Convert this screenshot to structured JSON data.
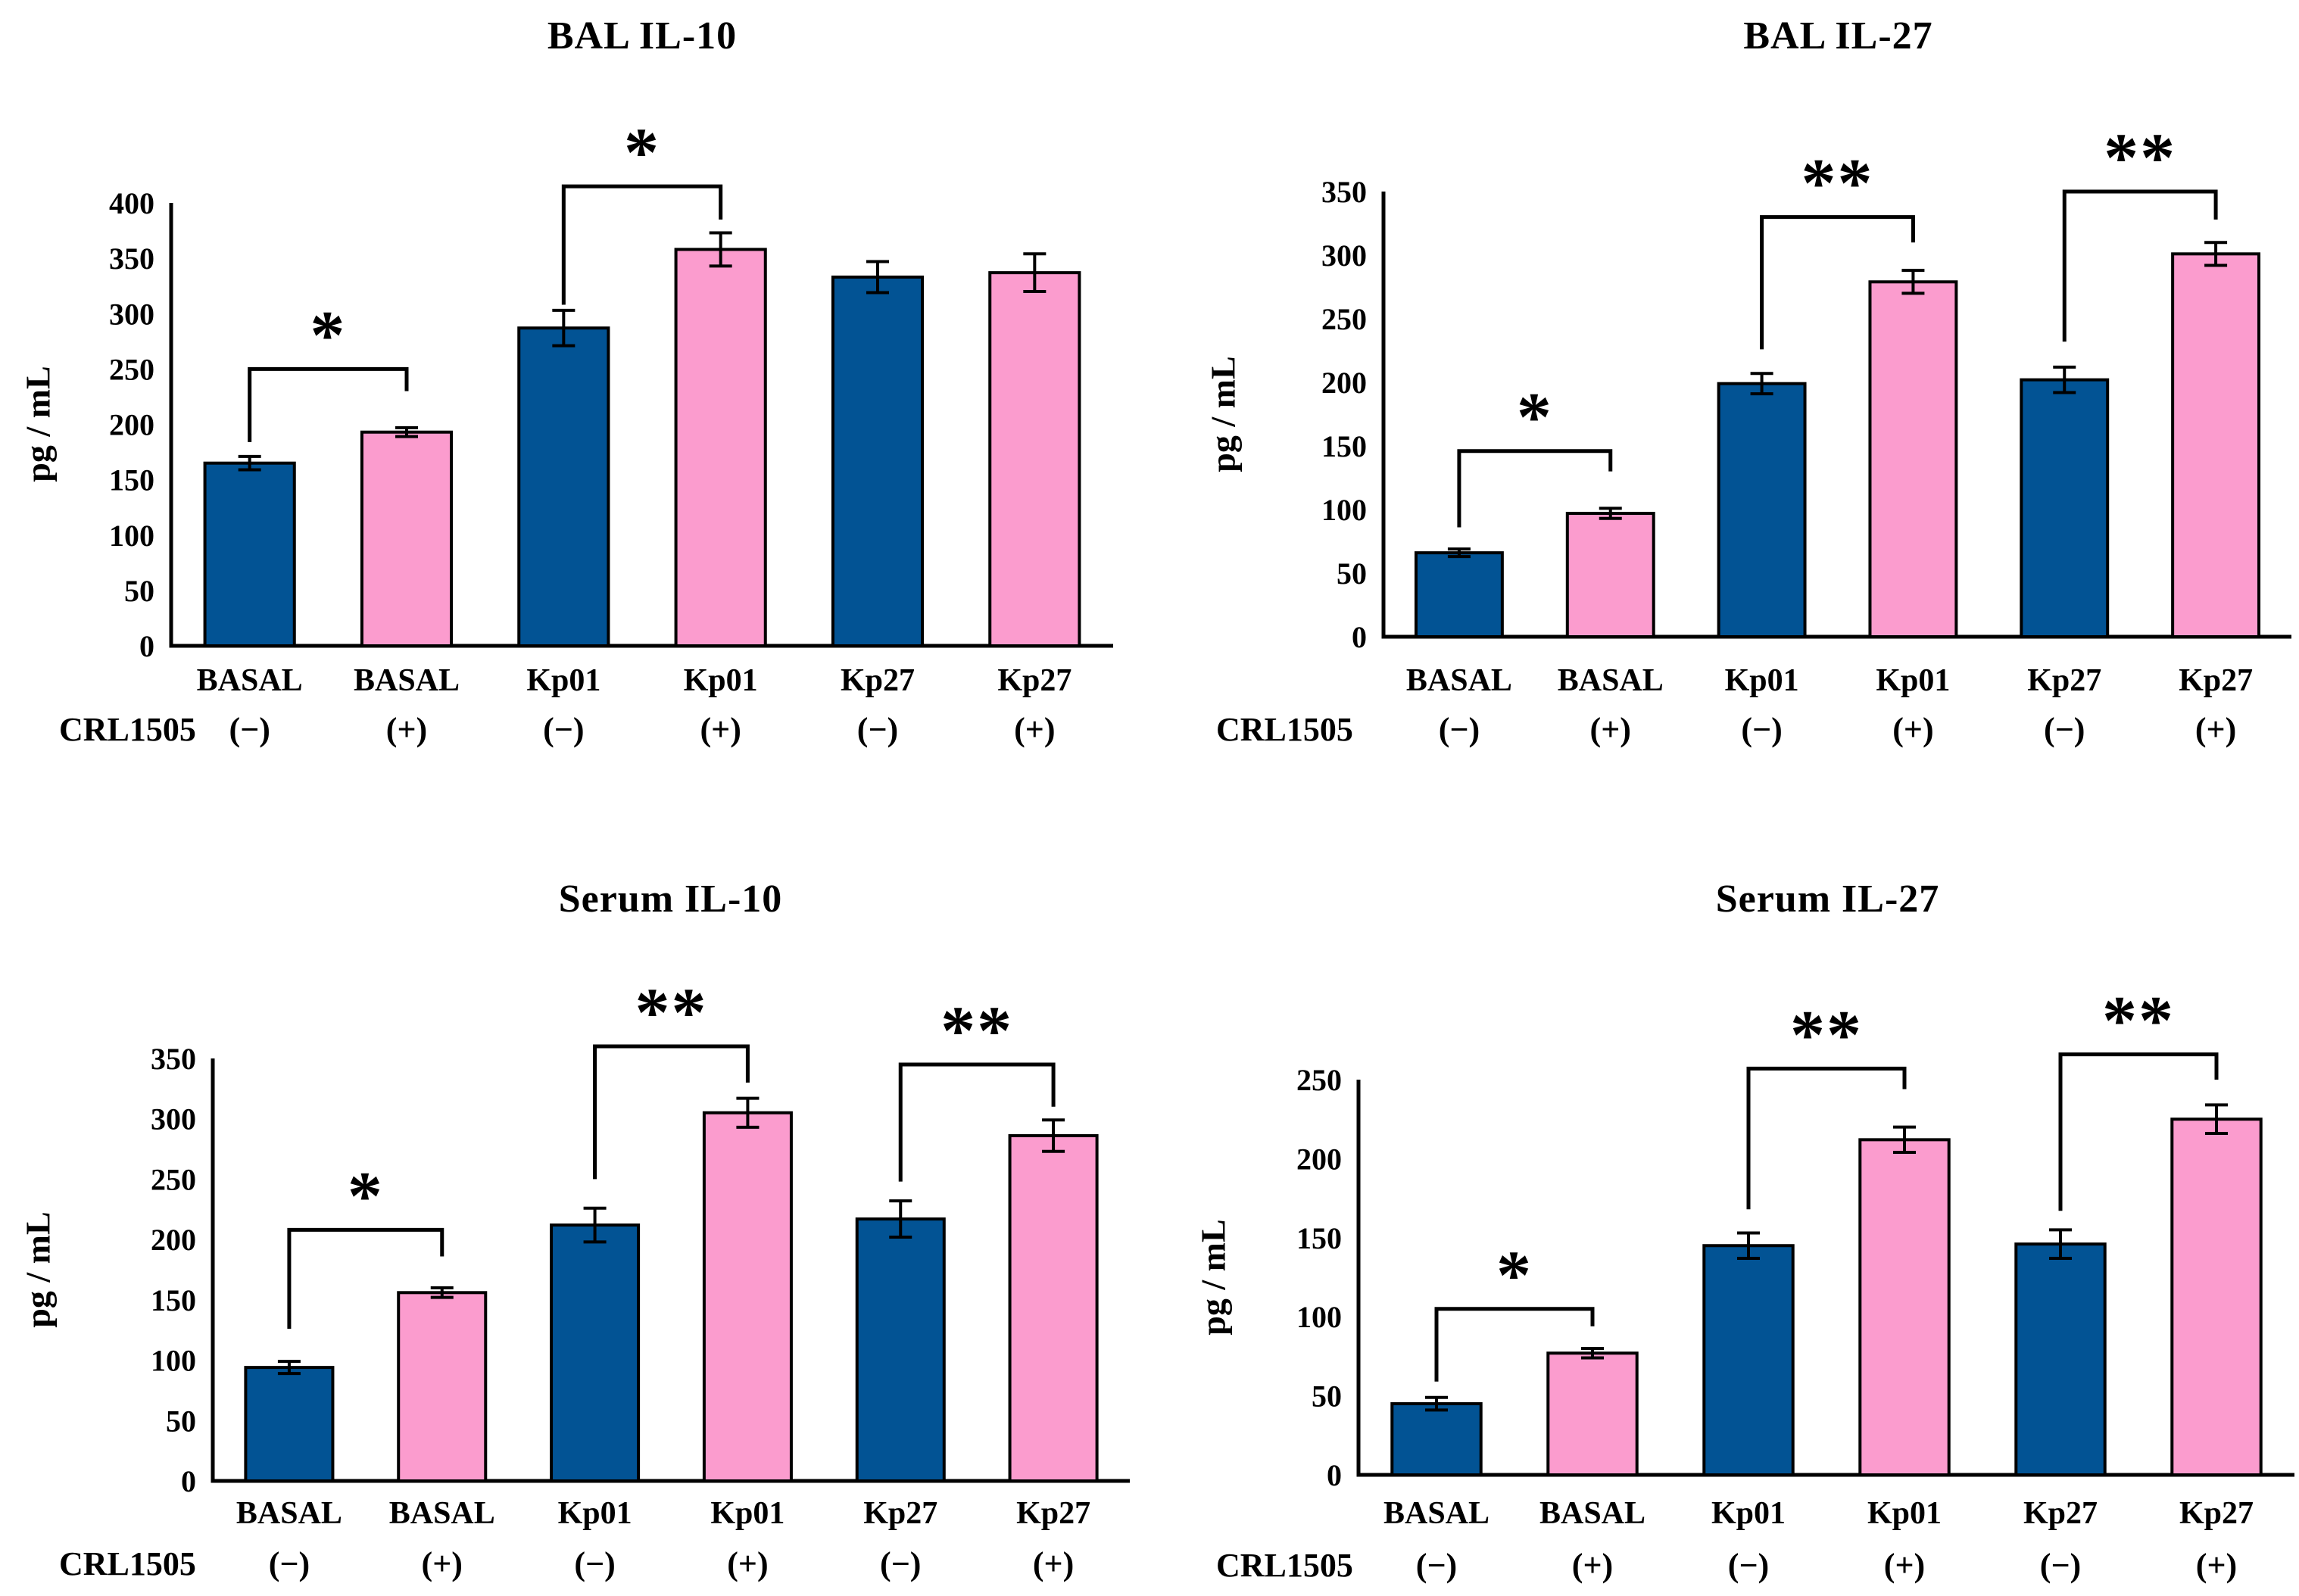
{
  "figure": {
    "background": "#ffffff",
    "colors": {
      "bar_crl_negative": "#025394",
      "bar_crl_positive": "#FB9CCE",
      "bar_outline": "#000000",
      "axis": "#000000",
      "text": "#000000"
    },
    "crl_row_label": "CRL1505",
    "legend_note_negative": "(−)",
    "legend_note_positive": "(+)"
  },
  "chart_data": [
    {
      "type": "bar",
      "title": "BAL IL-10",
      "ylabel": "pg / mL",
      "ylim": [
        0,
        400
      ],
      "ytick_step": 50,
      "grid": false,
      "categories": [
        "BASAL",
        "BASAL",
        "Kp01",
        "Kp01",
        "Kp27",
        "Kp27"
      ],
      "crl1505": [
        "(−)",
        "(+)",
        "(−)",
        "(+)",
        "(−)",
        "(+)"
      ],
      "values": [
        165,
        193,
        287,
        358,
        333,
        337
      ],
      "errors": [
        6,
        4,
        16,
        15,
        14,
        17
      ],
      "significance": [
        {
          "between": [
            0,
            1
          ],
          "label": "*",
          "bar_y": 250,
          "left_leg_bottom": 184,
          "right_leg_bottom": 230
        },
        {
          "between": [
            2,
            3
          ],
          "label": "*",
          "bar_y": 415,
          "left_leg_bottom": 308,
          "right_leg_bottom": 385
        }
      ]
    },
    {
      "type": "bar",
      "title": "BAL IL-27",
      "ylabel": "pg / mL",
      "ylim": [
        0,
        350
      ],
      "ytick_step": 50,
      "grid": false,
      "categories": [
        "BASAL",
        "BASAL",
        "Kp01",
        "Kp01",
        "Kp27",
        "Kp27"
      ],
      "crl1505": [
        "(−)",
        "(+)",
        "(−)",
        "(+)",
        "(−)",
        "(+)"
      ],
      "values": [
        66,
        97,
        199,
        279,
        202,
        301
      ],
      "errors": [
        3,
        4,
        8,
        9,
        10,
        9
      ],
      "significance": [
        {
          "between": [
            0,
            1
          ],
          "label": "*",
          "bar_y": 146,
          "left_leg_bottom": 86,
          "right_leg_bottom": 130
        },
        {
          "between": [
            2,
            3
          ],
          "label": "**",
          "bar_y": 330,
          "left_leg_bottom": 226,
          "right_leg_bottom": 310
        },
        {
          "between": [
            4,
            5
          ],
          "label": "**",
          "bar_y": 350,
          "left_leg_bottom": 232,
          "right_leg_bottom": 328
        }
      ]
    },
    {
      "type": "bar",
      "title": "Serum IL-10",
      "ylabel": "pg / mL",
      "ylim": [
        0,
        350
      ],
      "ytick_step": 50,
      "grid": false,
      "categories": [
        "BASAL",
        "BASAL",
        "Kp01",
        "Kp01",
        "Kp27",
        "Kp27"
      ],
      "crl1505": [
        "(−)",
        "(+)",
        "(−)",
        "(+)",
        "(−)",
        "(+)"
      ],
      "values": [
        94,
        156,
        212,
        305,
        217,
        286
      ],
      "errors": [
        5,
        4,
        14,
        12,
        15,
        13
      ],
      "significance": [
        {
          "between": [
            0,
            1
          ],
          "label": "*",
          "bar_y": 208,
          "left_leg_bottom": 126,
          "right_leg_bottom": 186
        },
        {
          "between": [
            2,
            3
          ],
          "label": "**",
          "bar_y": 360,
          "left_leg_bottom": 250,
          "right_leg_bottom": 330
        },
        {
          "between": [
            4,
            5
          ],
          "label": "**",
          "bar_y": 345,
          "left_leg_bottom": 248,
          "right_leg_bottom": 310
        }
      ]
    },
    {
      "type": "bar",
      "title": "Serum IL-27",
      "ylabel": "pg / mL",
      "ylim": [
        0,
        250
      ],
      "ytick_step": 50,
      "grid": false,
      "categories": [
        "BASAL",
        "BASAL",
        "Kp01",
        "Kp01",
        "Kp27",
        "Kp27"
      ],
      "crl1505": [
        "(−)",
        "(+)",
        "(−)",
        "(+)",
        "(−)",
        "(+)"
      ],
      "values": [
        45,
        77,
        145,
        212,
        146,
        225
      ],
      "errors": [
        4,
        3,
        8,
        8,
        9,
        9
      ],
      "significance": [
        {
          "between": [
            0,
            1
          ],
          "label": "*",
          "bar_y": 105,
          "left_leg_bottom": 59,
          "right_leg_bottom": 94
        },
        {
          "between": [
            2,
            3
          ],
          "label": "**",
          "bar_y": 257,
          "left_leg_bottom": 168,
          "right_leg_bottom": 244
        },
        {
          "between": [
            4,
            5
          ],
          "label": "**",
          "bar_y": 266,
          "left_leg_bottom": 167,
          "right_leg_bottom": 250
        }
      ]
    }
  ]
}
